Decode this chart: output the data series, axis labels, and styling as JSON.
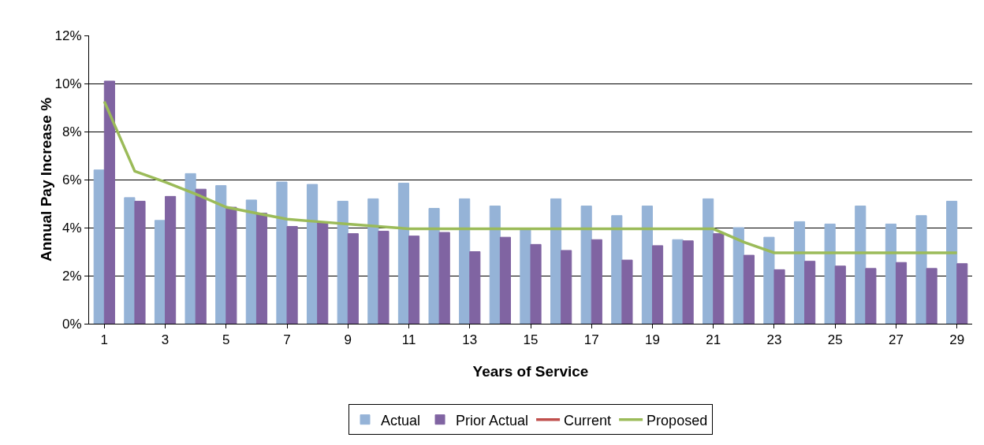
{
  "chart_data": {
    "type": "bar",
    "xlabel": "Years of Service",
    "ylabel": "Annual Pay Increase %",
    "x": [
      1,
      2,
      3,
      4,
      5,
      6,
      7,
      8,
      9,
      10,
      11,
      12,
      13,
      14,
      15,
      16,
      17,
      18,
      19,
      20,
      21,
      22,
      23,
      24,
      25,
      26,
      27,
      28,
      29
    ],
    "xlim": [
      0.5,
      29.5
    ],
    "xticks": [
      1,
      3,
      5,
      7,
      9,
      11,
      13,
      15,
      17,
      19,
      21,
      23,
      25,
      27,
      29
    ],
    "series": [
      {
        "name": "Actual",
        "color": "#95b3d7",
        "values": [
          6.4,
          5.25,
          4.3,
          6.25,
          5.75,
          5.15,
          5.9,
          5.8,
          5.1,
          5.2,
          5.85,
          4.8,
          5.2,
          4.9,
          3.95,
          5.2,
          4.9,
          4.5,
          4.9,
          3.5,
          5.2,
          4.0,
          3.6,
          4.25,
          4.15,
          4.9,
          4.15,
          4.5,
          5.1
        ]
      },
      {
        "name": "Prior Actual",
        "color": "#8064a2",
        "values": [
          10.1,
          5.1,
          5.3,
          5.6,
          4.85,
          4.6,
          4.05,
          4.2,
          3.75,
          3.85,
          3.65,
          3.8,
          3.0,
          3.6,
          3.3,
          3.05,
          3.5,
          2.65,
          3.25,
          3.45,
          3.75,
          2.85,
          2.25,
          2.6,
          2.4,
          2.3,
          2.55,
          2.3,
          2.5
        ]
      },
      {
        "name": "Current",
        "type": "line",
        "color": "#c0504d",
        "values": [
          null,
          null,
          null,
          null,
          null,
          null,
          null,
          null,
          null,
          null,
          null,
          null,
          null,
          null,
          null,
          null,
          null,
          null,
          null,
          null,
          null,
          null,
          null,
          null,
          null,
          null,
          null,
          null,
          null
        ]
      },
      {
        "name": "Proposed",
        "type": "line",
        "color": "#9bbb59",
        "values": [
          9.25,
          6.35,
          5.9,
          5.4,
          4.85,
          4.6,
          4.35,
          4.25,
          4.15,
          4.05,
          3.95,
          3.95,
          3.95,
          3.95,
          3.95,
          3.95,
          3.95,
          3.95,
          3.95,
          3.95,
          3.95,
          3.4,
          2.95,
          2.95,
          2.95,
          2.95,
          2.95,
          2.95,
          2.95
        ]
      }
    ],
    "ylim": [
      0,
      12
    ],
    "yticks": [
      {
        "value": 0,
        "label": "0%"
      },
      {
        "value": 2,
        "label": "2%"
      },
      {
        "value": 4,
        "label": "4%"
      },
      {
        "value": 6,
        "label": "6%"
      },
      {
        "value": 8,
        "label": "8%"
      },
      {
        "value": 10,
        "label": "10%"
      },
      {
        "value": 12,
        "label": "12%"
      }
    ],
    "grid": "y",
    "legend": "bottom",
    "marker": "none",
    "line_style": "solid"
  }
}
